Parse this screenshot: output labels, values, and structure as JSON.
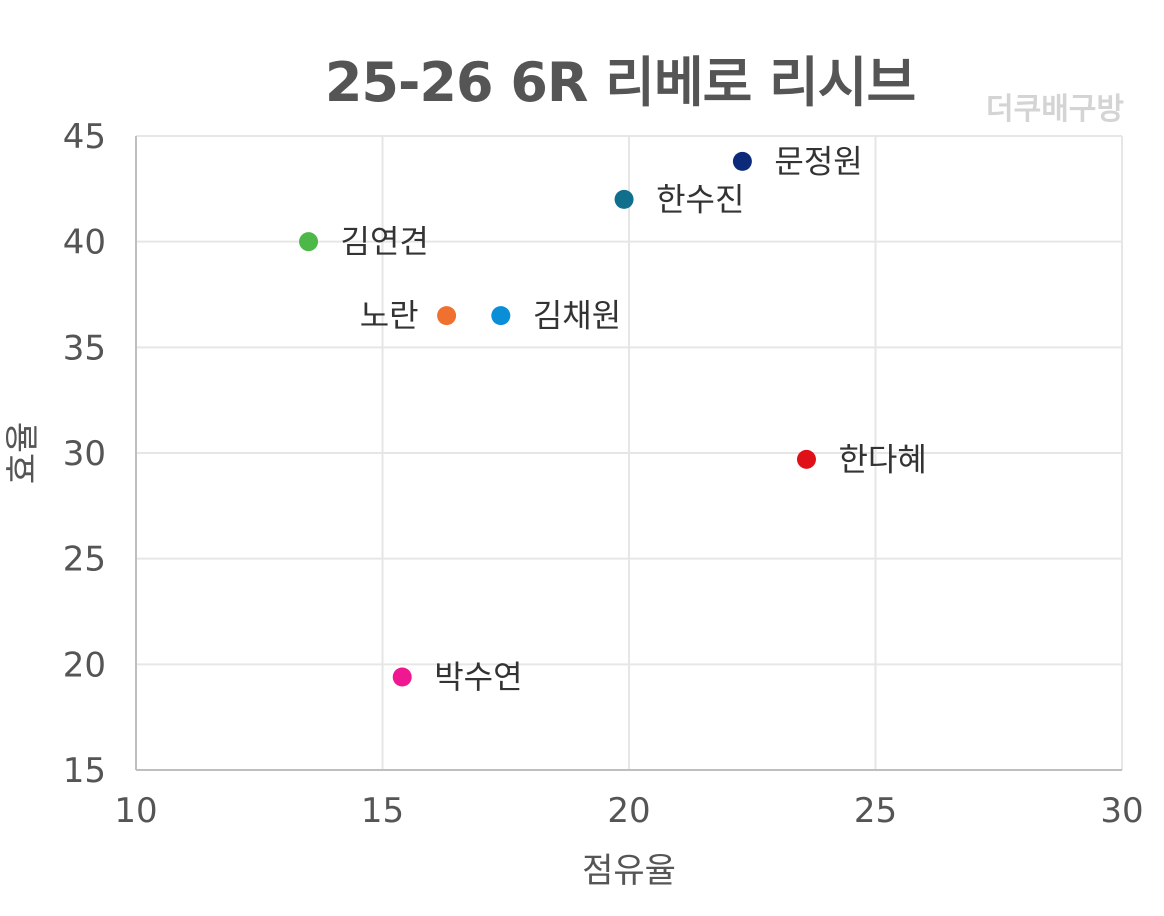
{
  "chart_data": {
    "type": "scatter",
    "title": "25-26 6R 리베로 리시브",
    "watermark": "더쿠배구방",
    "xlabel": "점유율",
    "ylabel": "효율",
    "xlim": [
      10,
      30
    ],
    "ylim": [
      15,
      45
    ],
    "xticks": [
      10,
      15,
      20,
      25,
      30
    ],
    "yticks": [
      15,
      20,
      25,
      30,
      35,
      40,
      45
    ],
    "grid": true,
    "points": [
      {
        "label": "문정원",
        "x": 22.3,
        "y": 43.8,
        "color": "#0c2a7a",
        "label_side": "right"
      },
      {
        "label": "한수진",
        "x": 19.9,
        "y": 42.0,
        "color": "#0f6f8c",
        "label_side": "right"
      },
      {
        "label": "김연견",
        "x": 13.5,
        "y": 40.0,
        "color": "#4cb848",
        "label_side": "right"
      },
      {
        "label": "노란",
        "x": 16.3,
        "y": 36.5,
        "color": "#f07030",
        "label_side": "left"
      },
      {
        "label": "김채원",
        "x": 17.4,
        "y": 36.5,
        "color": "#0a8ed8",
        "label_side": "right"
      },
      {
        "label": "한다혜",
        "x": 23.6,
        "y": 29.7,
        "color": "#e01018",
        "label_side": "right"
      },
      {
        "label": "박수연",
        "x": 15.4,
        "y": 19.4,
        "color": "#f01890",
        "label_side": "right"
      }
    ]
  }
}
